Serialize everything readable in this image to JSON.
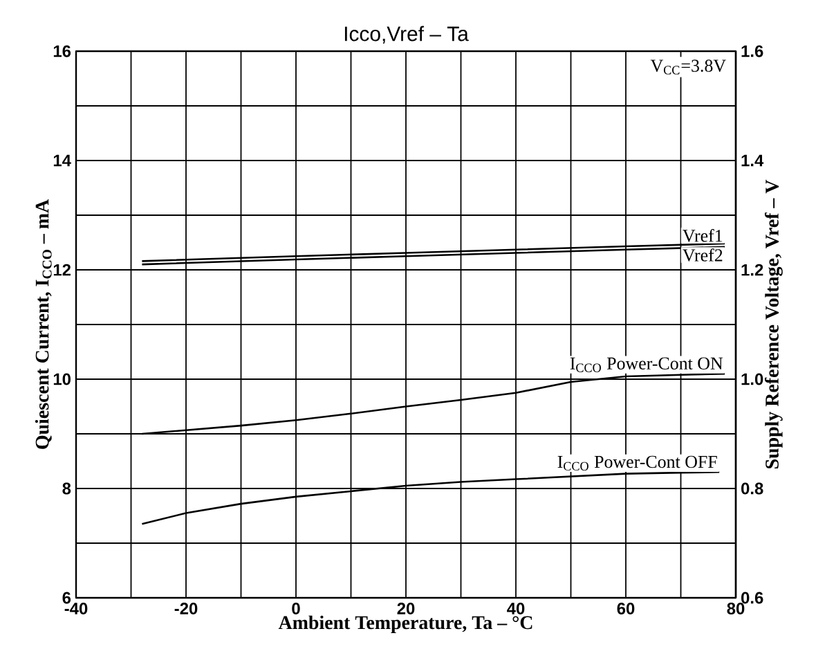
{
  "chart_data": {
    "type": "line",
    "title": "Icco,Vref  –  Ta",
    "xlabel": "Ambient Temperature, Ta  –  °C",
    "ylabel": "Quiescent Current, I$_{CCO}$  –  mA",
    "y2label": "Supply Reference Voltage, Vref  –  V",
    "annotations": [
      "V$_{CC}$=3.8V"
    ],
    "xlim": [
      -40,
      80
    ],
    "xticks": [
      -40,
      {
        "value": -30,
        "label": null
      },
      -20,
      {
        "value": -10,
        "label": null
      },
      0,
      {
        "value": 10,
        "label": null
      },
      20,
      {
        "value": 30,
        "label": null
      },
      40,
      {
        "value": 50,
        "label": null
      },
      60,
      {
        "value": 70,
        "label": null
      },
      80
    ],
    "ylim": [
      6,
      16
    ],
    "yticks": [
      6,
      {
        "value": 7,
        "label": null
      },
      8,
      {
        "value": 9,
        "label": null
      },
      10,
      {
        "value": 11,
        "label": null
      },
      12,
      {
        "value": 13,
        "label": null
      },
      14,
      {
        "value": 15,
        "label": null
      },
      16
    ],
    "y2lim": [
      0.6,
      1.6
    ],
    "y2ticks": [
      0.6,
      0.8,
      {
        "value": 1.0,
        "label": "1.0"
      },
      1.2,
      1.4,
      1.6
    ],
    "grid": true,
    "marker": "none",
    "line_style": "solid",
    "series": [
      {
        "name": "Vref1",
        "color": "#000000",
        "axis": "y2",
        "x": [
          -28,
          0,
          20,
          40,
          60,
          78
        ],
        "values": [
          1.216,
          1.225,
          1.231,
          1.237,
          1.243,
          1.248
        ]
      },
      {
        "name": "Vref2",
        "color": "#000000",
        "axis": "y2",
        "x": [
          -28,
          0,
          20,
          40,
          60,
          78
        ],
        "values": [
          1.21,
          1.219,
          1.225,
          1.231,
          1.237,
          1.242
        ]
      },
      {
        "name": "I$_{CCO}$ Power-Cont ON",
        "color": "#000000",
        "x": [
          -28,
          -10,
          0,
          10,
          20,
          30,
          40,
          50,
          60,
          70,
          78
        ],
        "values": [
          9.0,
          9.15,
          9.25,
          9.37,
          9.5,
          9.62,
          9.75,
          9.95,
          10.05,
          10.08,
          10.1
        ]
      },
      {
        "name": "I$_{CCO}$ Power-Cont OFF",
        "color": "#000000",
        "x": [
          -28,
          -20,
          -10,
          0,
          10,
          20,
          30,
          40,
          50,
          60,
          70,
          77
        ],
        "values": [
          7.35,
          7.55,
          7.72,
          7.85,
          7.95,
          8.05,
          8.12,
          8.17,
          8.22,
          8.27,
          8.29,
          8.3
        ]
      }
    ]
  }
}
